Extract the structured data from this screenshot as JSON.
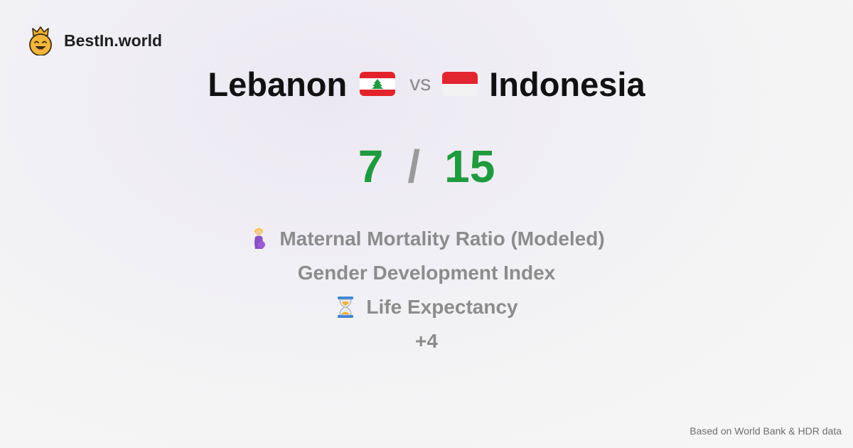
{
  "brand": {
    "name": "BestIn.world",
    "icon": "crown-smiley-icon"
  },
  "comparison": {
    "left_country": "Lebanon",
    "left_flag_icon": "lebanon-flag-icon",
    "separator": "vs",
    "right_country": "Indonesia",
    "right_flag_icon": "indonesia-flag-icon"
  },
  "score": {
    "left": "7",
    "separator": "/",
    "right": "15",
    "color": "#1f9a3e"
  },
  "metrics": [
    {
      "label": "Maternal Mortality Ratio (Modeled)",
      "icon": "pregnant-woman-icon"
    },
    {
      "label": "Gender Development Index",
      "icon": ""
    },
    {
      "label": "Life Expectancy",
      "icon": "hourglass-icon"
    }
  ],
  "more_label": "+4",
  "footer": {
    "source": "Based on World Bank & HDR data"
  }
}
